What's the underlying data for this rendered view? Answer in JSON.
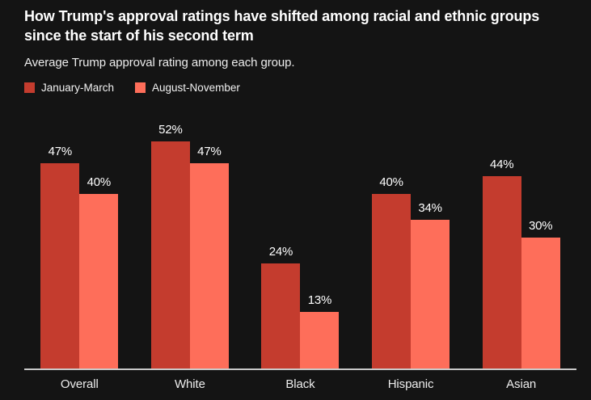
{
  "header": {
    "title": "How Trump's approval ratings have shifted among racial and ethnic groups since the start of his second term",
    "subtitle": "Average Trump approval rating among each group."
  },
  "colors": {
    "background": "#141414",
    "january_march_bar": "#c43c2e",
    "august_november_bar": "#fe6e5a",
    "axis_line": "#c9c9c9",
    "title_text": "#ffffff",
    "label_text": "#ededed"
  },
  "chart_data": {
    "type": "bar",
    "title": "How Trump's approval ratings have shifted among racial and ethnic groups since the start of his second term",
    "subtitle": "Average Trump approval rating among each group.",
    "categories": [
      "Overall",
      "White",
      "Black",
      "Hispanic",
      "Asian"
    ],
    "series": [
      {
        "name": "January-March",
        "color": "#c43c2e",
        "values": [
          47,
          52,
          24,
          40,
          44
        ]
      },
      {
        "name": "August-November",
        "color": "#fe6e5a",
        "values": [
          40,
          47,
          13,
          34,
          30
        ]
      }
    ],
    "value_suffix": "%",
    "value_labels": true,
    "xlabel": "",
    "ylabel": "",
    "ylim": [
      0,
      62
    ],
    "grid": false,
    "legend_position": "top-left"
  }
}
